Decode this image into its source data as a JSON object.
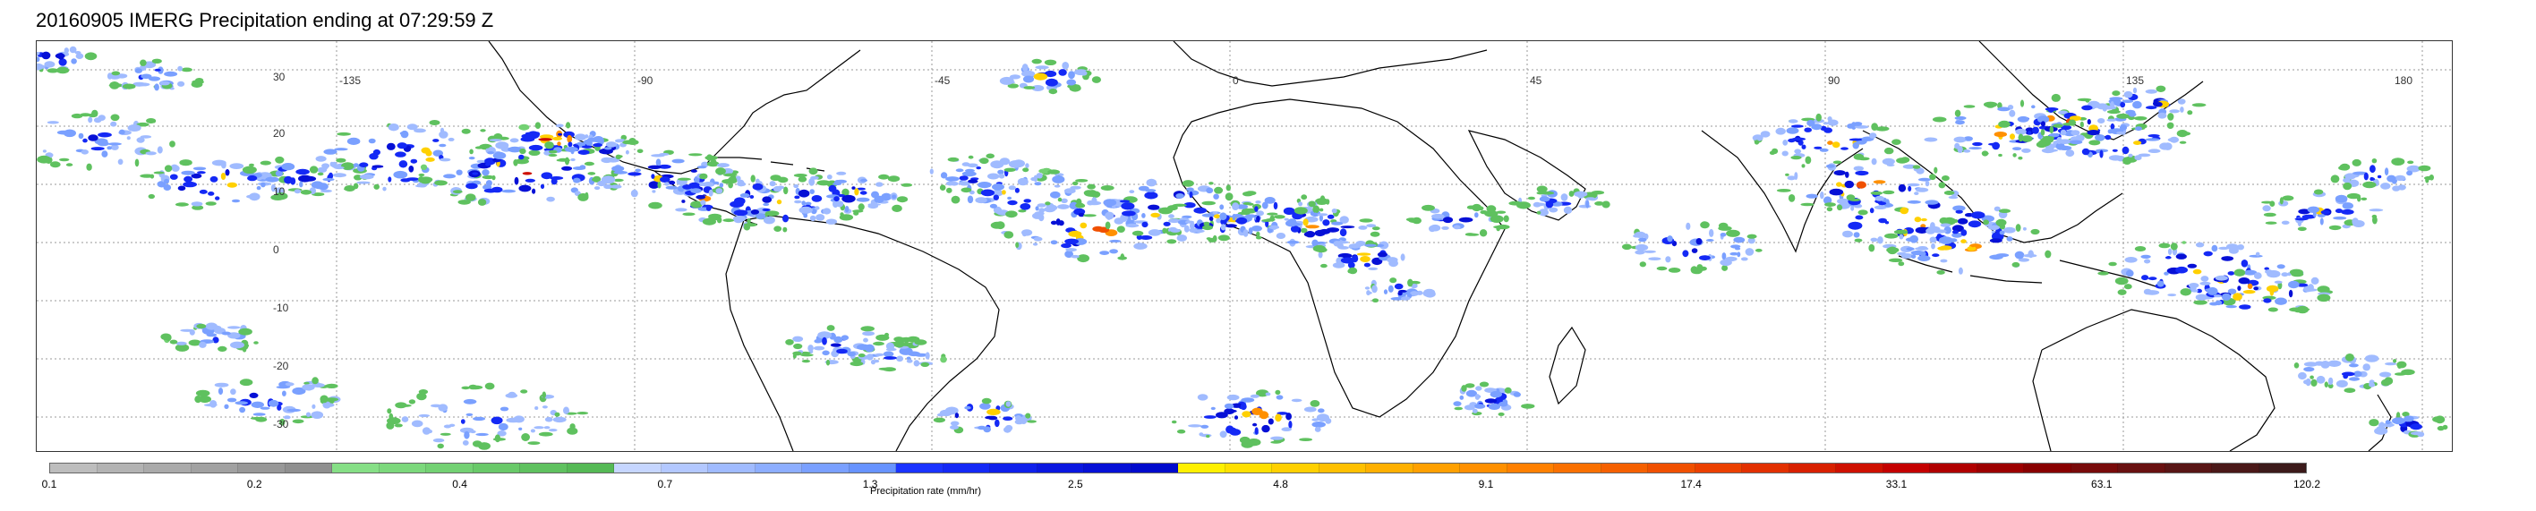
{
  "title": "20160905 IMERG Precipitation ending at 07:29:59 Z",
  "map": {
    "lon_labels": [
      "-135",
      "-90",
      "-45",
      "0",
      "45",
      "90",
      "135",
      "180"
    ],
    "lat_labels": [
      "30",
      "20",
      "10",
      "0",
      "-10",
      "-20",
      "-30"
    ]
  },
  "colorbar": {
    "title": "Precipitation rate (mm/hr)",
    "ticks": [
      "0.1",
      "0.2",
      "0.4",
      "0.7",
      "1.3",
      "2.5",
      "4.8",
      "9.1",
      "17.4",
      "33.1",
      "63.1",
      "120.2"
    ],
    "colors": [
      "#bdbdbd",
      "#b3b3b3",
      "#aaaaaa",
      "#a1a1a1",
      "#989898",
      "#8f8f8f",
      "#86df86",
      "#7cd87c",
      "#73d173",
      "#69c969",
      "#5fc15f",
      "#55b955",
      "#c6d6ff",
      "#b3c8ff",
      "#a0bbff",
      "#8daeff",
      "#7aa0ff",
      "#6793ff",
      "#1a33ff",
      "#1429f5",
      "#0f20eb",
      "#0a17e0",
      "#0610d6",
      "#000acc",
      "#fff000",
      "#ffe000",
      "#ffd000",
      "#ffc000",
      "#ffb000",
      "#ffa000",
      "#ff9000",
      "#ff8000",
      "#fa7000",
      "#f56000",
      "#f05000",
      "#eb4000",
      "#e23000",
      "#d82000",
      "#ce1000",
      "#c40000",
      "#b00000",
      "#9c0000",
      "#880000",
      "#780a0a",
      "#681010",
      "#581515",
      "#4a1818",
      "#3c1a1a"
    ]
  }
}
